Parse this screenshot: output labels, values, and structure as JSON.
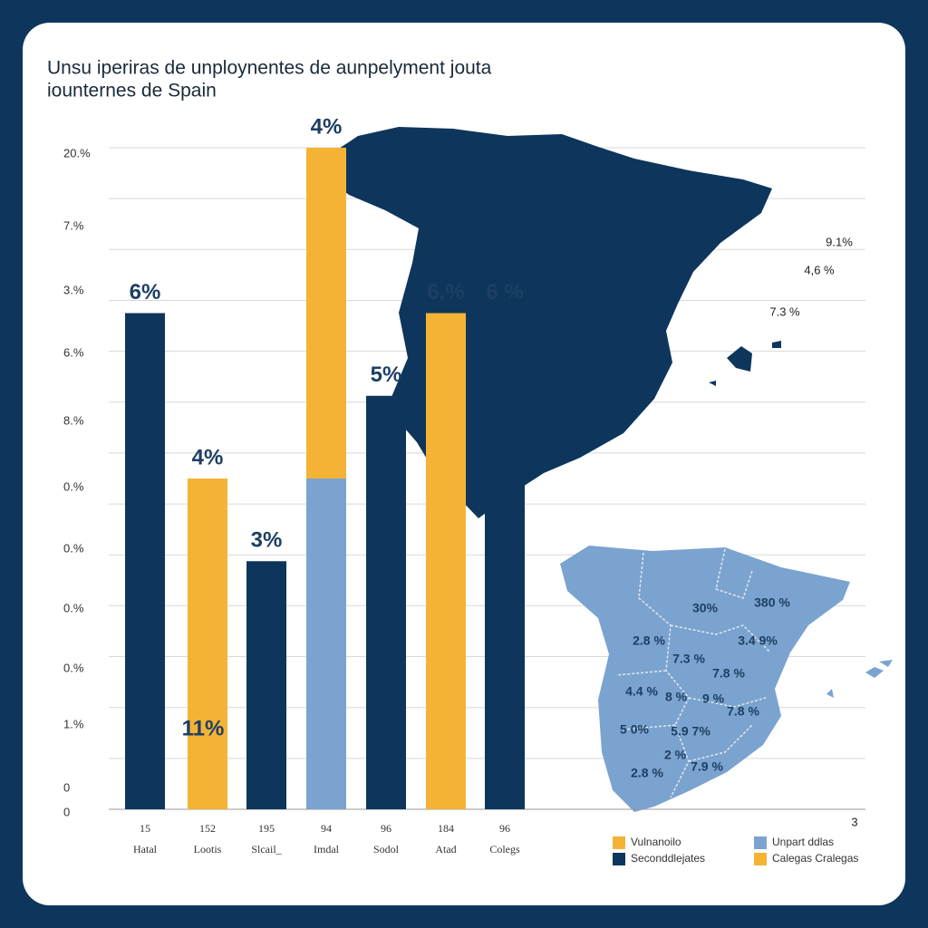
{
  "chart_data": {
    "type": "bar",
    "title": "Unsu iperiras de unploynentes de aunpelyment jouta",
    "subtitle": "iounternes de Spain",
    "y_axis_labels": [
      "20.%",
      "7.%",
      "3.%",
      "6.%",
      "8.%",
      "0.%",
      "0.%",
      "0.%",
      "0.%",
      "1.%",
      "0",
      "0"
    ],
    "categories": [
      "Hatal",
      "Lootis",
      "Slcail_",
      "Imdal",
      "Sodol",
      "Atad",
      "Colegs"
    ],
    "category_codes": [
      "15",
      "152",
      "195",
      "94",
      "96",
      "184",
      "96"
    ],
    "ylim": [
      0,
      8
    ],
    "series": [
      {
        "name": "Seconddlejates",
        "color": "#0e365c",
        "values": [
          6,
          null,
          3,
          null,
          5,
          null,
          6
        ],
        "value_labels": [
          "6%",
          null,
          "3%",
          null,
          "5%",
          null,
          "6 %"
        ]
      },
      {
        "name": "Unpart ddlas",
        "color": "#7ba3cf",
        "values": [
          null,
          null,
          null,
          4,
          null,
          null,
          null
        ],
        "value_labels": [
          null,
          null,
          null,
          "4%",
          null,
          null,
          null
        ]
      },
      {
        "name": "Vulnanoilo",
        "color": "#f5b335",
        "values": [
          null,
          4,
          null,
          4,
          null,
          6,
          null
        ],
        "value_labels": [
          null,
          "4%",
          null,
          "4%",
          null,
          "6.%",
          null
        ]
      }
    ],
    "annotation": "11%",
    "extra_legend": {
      "name": "Calegas Cralegas",
      "color": "#f5b335"
    },
    "map_labels": [
      "9.1%",
      "4,6 %",
      "7.3 %"
    ],
    "region_labels": [
      "30%",
      "380 %",
      "2.8 %",
      "7.3 %",
      "3.4 9%",
      "7.8 %",
      "4.4 %",
      "8 %",
      "9 %",
      "7.8 %",
      "5 0%",
      "5.9 7%",
      "2 %",
      "7.9 %",
      "2.8 %",
      "3"
    ]
  }
}
